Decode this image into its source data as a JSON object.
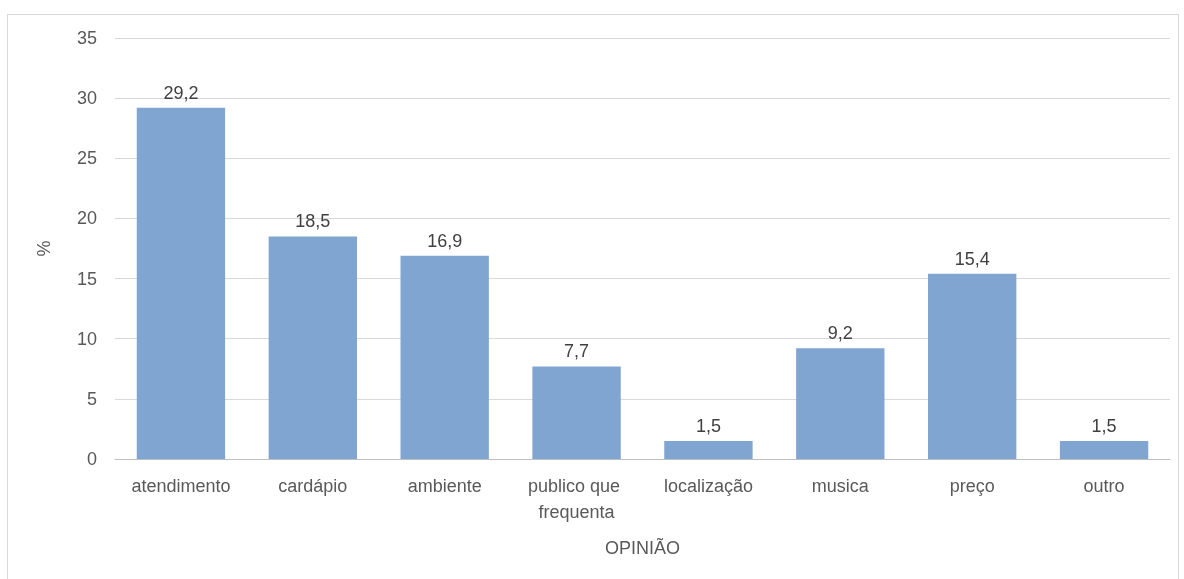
{
  "chart_data": {
    "type": "bar",
    "xlabel": "OPINIÃO",
    "ylabel": "%",
    "categories": [
      "atendimento",
      "cardápio",
      "ambiente",
      "publico que frequenta",
      "localização",
      "musica",
      "preço",
      "outro"
    ],
    "values": [
      29.2,
      18.5,
      16.9,
      7.7,
      1.5,
      9.2,
      15.4,
      1.5
    ],
    "value_labels": [
      "29,2",
      "18,5",
      "16,9",
      "7,7",
      "1,5",
      "9,2",
      "15,4",
      "1,5"
    ],
    "color": "#7fa5d0",
    "ylim": [
      0,
      35
    ],
    "yticks": [
      0,
      5,
      10,
      15,
      20,
      25,
      30,
      35
    ],
    "grid": "y"
  }
}
